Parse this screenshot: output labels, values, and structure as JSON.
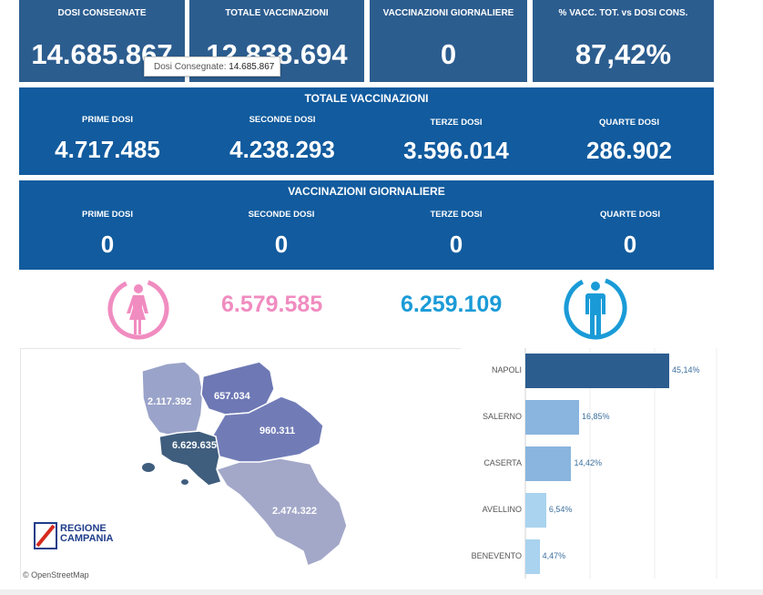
{
  "kpis": [
    {
      "label": "DOSI CONSEGNATE",
      "value": "14.685.867"
    },
    {
      "label": "TOTALE VACCINAZIONI",
      "value": "12.838.694"
    },
    {
      "label": "VACCINAZIONI GIORNALIERE",
      "value": "0"
    },
    {
      "label": "% VACC. TOT. vs DOSI CONS.",
      "value": "87,42%"
    }
  ],
  "tooltip": {
    "label": "Dosi Consegnate:",
    "value": "14.685.867"
  },
  "totale": {
    "title": "TOTALE VACCINAZIONI",
    "cells": [
      {
        "label": "PRIME DOSI",
        "value": "4.717.485"
      },
      {
        "label": "SECONDE DOSI",
        "value": "4.238.293"
      },
      {
        "label": "TERZE DOSI",
        "value": "3.596.014"
      },
      {
        "label": "QUARTE DOSI",
        "value": "286.902"
      }
    ]
  },
  "giornaliere": {
    "title": "VACCINAZIONI GIORNALIERE",
    "cells": [
      {
        "label": "PRIME DOSI",
        "value": "0"
      },
      {
        "label": "SECONDE DOSI",
        "value": "0"
      },
      {
        "label": "TERZE DOSI",
        "value": "0"
      },
      {
        "label": "QUARTE DOSI",
        "value": "0"
      }
    ]
  },
  "gender": {
    "female_value": "6.579.585",
    "male_value": "6.259.109",
    "female_color": "#f08cc0",
    "male_color": "#1a9bd7"
  },
  "map": {
    "labels": {
      "caserta": "2.117.392",
      "benevento": "657.034",
      "avellino": "960.311",
      "napoli": "6.629.635",
      "salerno": "2.474.322"
    },
    "logo_line1": "REGIONE",
    "logo_line2": "CAMPANIA",
    "attribution": "© OpenStreetMap"
  },
  "chart_data": {
    "type": "bar",
    "orientation": "horizontal",
    "categories": [
      "NAPOLI",
      "SALERNO",
      "CASERTA",
      "AVELLINO",
      "BENEVENTO"
    ],
    "values": [
      45.14,
      16.85,
      14.42,
      6.54,
      4.47
    ],
    "value_labels": [
      "45,14%",
      "16,85%",
      "14,42%",
      "6,54%",
      "4,47%"
    ],
    "colors": [
      "#2c5d8f",
      "#8ab5de",
      "#8ab5de",
      "#a9d3ef",
      "#a9d3ef"
    ],
    "grid": true
  }
}
